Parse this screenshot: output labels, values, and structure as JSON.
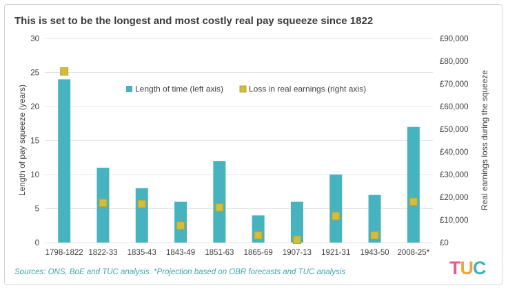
{
  "title": "This is set to be the longest and most costly real pay squeeze since 1822",
  "source": "Sources: ONS, BoE and TUC analysis. *Projection based on OBR forecasts and TUC analysis",
  "logo_text": "TUC",
  "colors": {
    "bar": "#47b3bf",
    "marker": "#d4bd38",
    "marker_edge": "#b9a12e",
    "grid": "#e6e6e6",
    "text": "#404040",
    "source": "#3aa7b3"
  },
  "chart_data": {
    "type": "bar",
    "categories": [
      "1798-1822",
      "1822-33",
      "1835-43",
      "1843-49",
      "1851-63",
      "1865-69",
      "1907-13",
      "1921-31",
      "1943-50",
      "2008-25*"
    ],
    "series": [
      {
        "name": "Length of time (left axis)",
        "type": "bar",
        "axis": "left",
        "values": [
          24,
          11,
          8,
          6,
          12,
          4,
          6,
          10,
          7,
          17
        ]
      },
      {
        "name": "Loss in real earnings (right axis)",
        "type": "scatter",
        "axis": "right",
        "values": [
          75500,
          17500,
          17000,
          7500,
          15500,
          3200,
          1200,
          11700,
          3200,
          18000
        ]
      }
    ],
    "ylabel": "Length of pay squeeze (years)",
    "ylabel_right": "Real earnings loss during the squeeze",
    "ylim": [
      0,
      30
    ],
    "ylim_right": [
      0,
      90000
    ],
    "yticks": [
      "0",
      "5",
      "10",
      "15",
      "20",
      "25",
      "30"
    ],
    "yticks_right": [
      "£0",
      "£10,000",
      "£20,000",
      "£30,000",
      "£40,000",
      "£50,000",
      "£60,000",
      "£70,000",
      "£80,000",
      "£90,000"
    ],
    "grid": true,
    "legend_position": "top-center"
  }
}
